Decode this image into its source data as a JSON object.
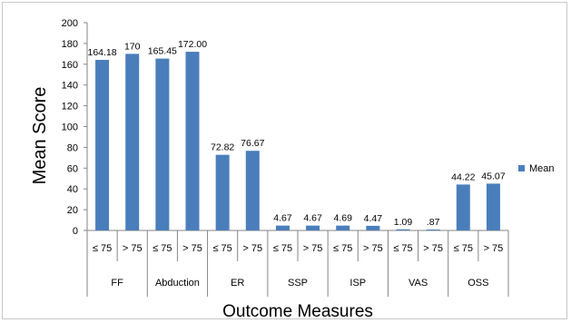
{
  "chart_data": {
    "type": "bar",
    "title": "",
    "xlabel": "Outcome Measures",
    "ylabel": "Mean Score",
    "ylim": [
      0,
      200
    ],
    "yticks": [
      0,
      20,
      40,
      60,
      80,
      100,
      120,
      140,
      160,
      180,
      200
    ],
    "grid": false,
    "legend_position": "right",
    "bar_color": "#4a7ebb",
    "groups": [
      "FF",
      "Abduction",
      "ER",
      "SSP",
      "ISP",
      "VAS",
      "OSS"
    ],
    "subcategories": [
      "≤ 75",
      "> 75"
    ],
    "series": [
      {
        "name": "Mean",
        "values": [
          164.18,
          170,
          165.45,
          172.0,
          72.82,
          76.67,
          4.67,
          4.67,
          4.69,
          4.47,
          1.09,
          0.87,
          44.22,
          45.07
        ],
        "labels": [
          "164.18",
          "170",
          "165.45",
          "172.00",
          "72.82",
          "76.67",
          "4.67",
          "4.67",
          "4.69",
          "4.47",
          "1.09",
          ".87",
          "44.22",
          "45.07"
        ]
      }
    ]
  }
}
